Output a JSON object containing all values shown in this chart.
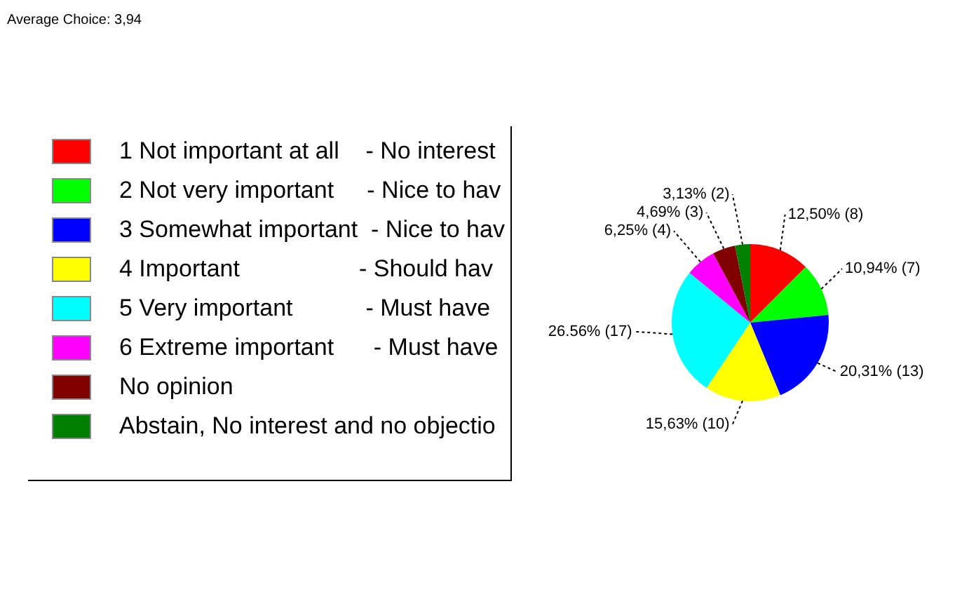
{
  "chart_data": {
    "type": "pie",
    "title": "Average Choice: 3,94",
    "categories": [
      "1 Not important at all    - No interest",
      "2 Not very important     - Nice to hav",
      "3 Somewhat important  - Nice to hav",
      "4 Important                  - Should hav",
      "5 Very important           - Must have",
      "6 Extreme important      - Must have",
      "No opinion",
      "Abstain, No interest and no objectio"
    ],
    "values": [
      8,
      7,
      13,
      10,
      17,
      4,
      3,
      2
    ],
    "colors": [
      "#ff0000",
      "#00ff00",
      "#0000ff",
      "#ffff00",
      "#00ffff",
      "#ff00ff",
      "#800000",
      "#008000"
    ],
    "value_labels": [
      "12,50% (8)",
      "10,94% (7)",
      "20,31% (13)",
      "15,63% (10)",
      "26.56% (17)",
      "6,25% (4)",
      "4,69% (3)",
      "3,13% (2)"
    ],
    "legend": "left"
  }
}
